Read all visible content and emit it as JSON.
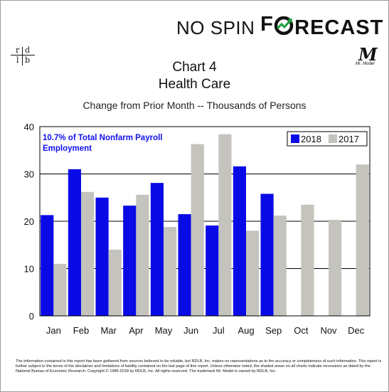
{
  "brand": {
    "text_a": "NO SPIN ",
    "letter_f": "F",
    "text_b": "RECAST"
  },
  "logo_left": {
    "top_left": "r",
    "top_right": "d",
    "bottom_left": "l",
    "bottom_right": "b"
  },
  "logo_right": {
    "letter": "M",
    "tagline": "Mr. Model"
  },
  "header": {
    "title": "Chart 4",
    "subtitle": "Health Care",
    "caption": "Change from Prior Month -- Thousands of Persons"
  },
  "annotation": "10.7% of Total Nonfarm Payroll Employment",
  "footnote": "The information contained in this report has been gathered from sources believed to be reliable, but RDLB, Inc. makes no representations as to the accuracy or completeness of such information. This report is further subject to the terms of the disclaimer and limitations of liability contained on the last page of this report. Unless otherwise noted, the shaded areas on all charts indicate recessions as dated by the National Bureau of Economic Research. Copyright © 1989-2018 by RDLB, Inc. All rights reserved. The trademark Mr. Model is owned by RDLB, Inc.",
  "colors": {
    "series_2018": "#0a0ae6",
    "series_2017": "#c4c3bd",
    "annotation": "#1010ee"
  },
  "chart_data": {
    "type": "bar",
    "categories": [
      "Jan",
      "Feb",
      "Mar",
      "Apr",
      "May",
      "Jun",
      "Jul",
      "Aug",
      "Sep",
      "Oct",
      "Nov",
      "Dec"
    ],
    "series": [
      {
        "name": "2018",
        "values": [
          21.3,
          31.0,
          25.0,
          23.3,
          28.1,
          21.5,
          19.1,
          31.6,
          25.8,
          null,
          null,
          null
        ]
      },
      {
        "name": "2017",
        "values": [
          11.0,
          26.2,
          14.0,
          25.6,
          18.8,
          36.3,
          38.4,
          18.0,
          21.2,
          23.5,
          20.3,
          32.0
        ]
      }
    ],
    "ylim": [
      0,
      40
    ],
    "yticks": [
      0,
      10,
      20,
      30,
      40
    ],
    "grid": true,
    "legend": "top-right"
  }
}
